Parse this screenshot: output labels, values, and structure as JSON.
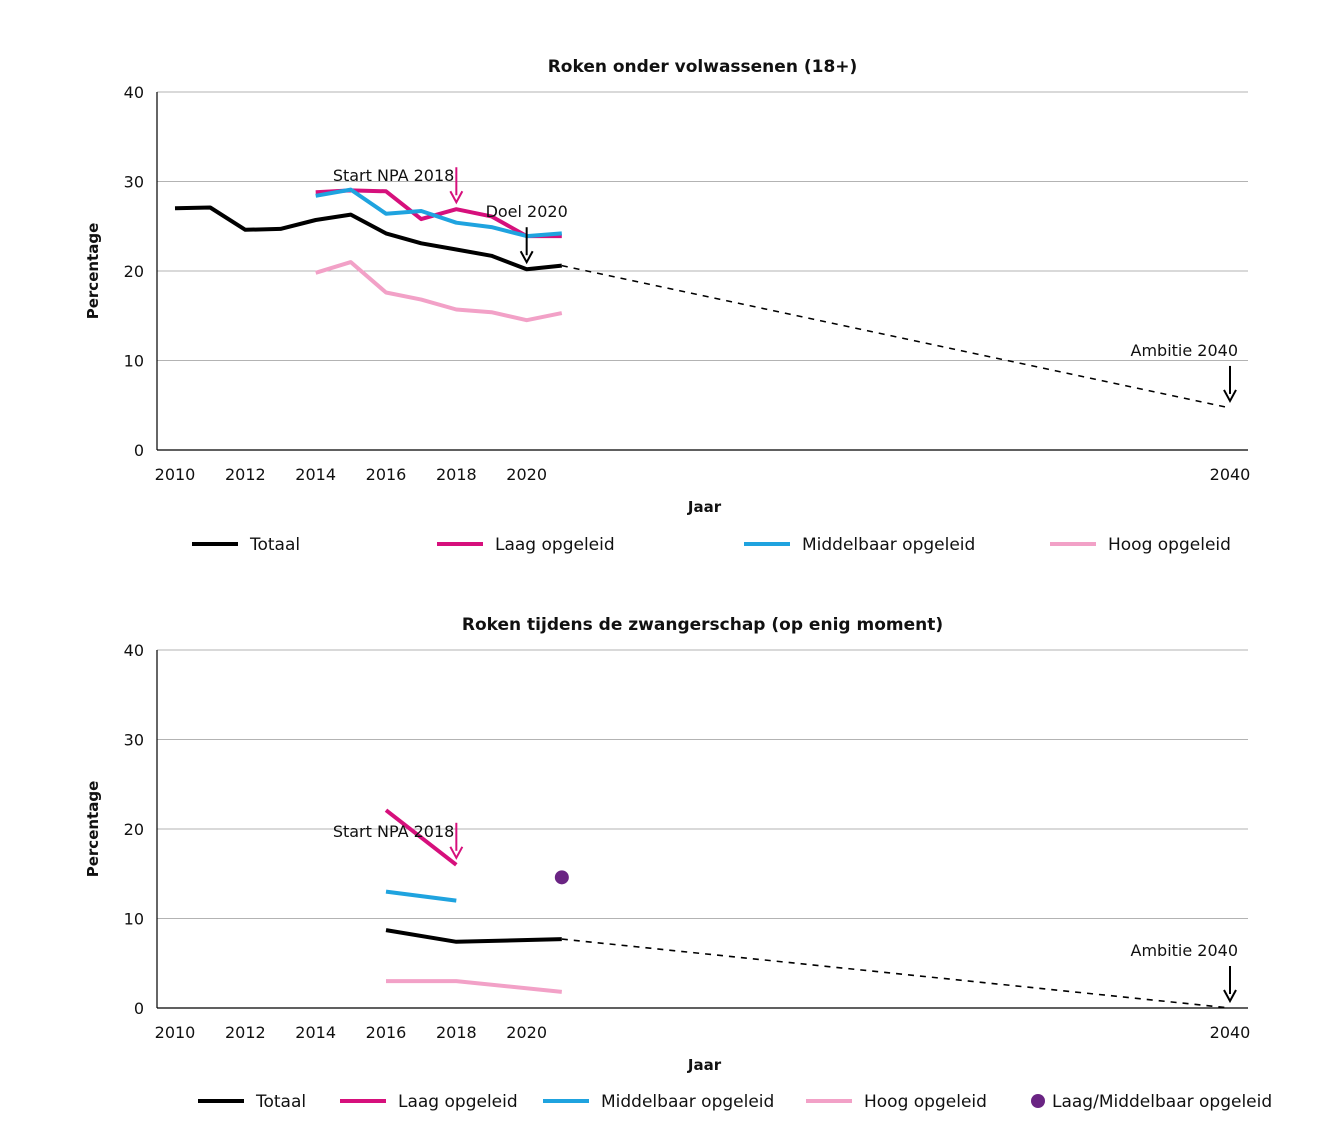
{
  "chart_data": [
    {
      "type": "line",
      "title": "Roken onder volwassenen (18+)",
      "xlabel": "Jaar",
      "ylabel": "Percentage",
      "xlim": [
        2010,
        2040
      ],
      "ylim": [
        0,
        40
      ],
      "xticks": [
        "2010",
        "2012",
        "2014",
        "2016",
        "2018",
        "2020",
        "2040"
      ],
      "yticks": [
        "0",
        "10",
        "20",
        "30",
        "40"
      ],
      "grid": "horizontal",
      "legend_position": "bottom",
      "series": [
        {
          "name": "Totaal",
          "color": "#000000",
          "x": [
            2010,
            2011,
            2012,
            2013,
            2014,
            2015,
            2016,
            2017,
            2018,
            2019,
            2020,
            2021
          ],
          "y": [
            27.0,
            27.1,
            24.6,
            24.7,
            25.7,
            26.3,
            24.2,
            23.1,
            22.4,
            21.7,
            20.2,
            20.6
          ]
        },
        {
          "name": "Laag opgeleid",
          "color": "#d6107c",
          "x": [
            2014,
            2015,
            2016,
            2017,
            2018,
            2019,
            2020,
            2021
          ],
          "y": [
            28.8,
            29.0,
            28.9,
            25.8,
            26.9,
            26.1,
            23.9,
            23.9
          ]
        },
        {
          "name": "Middelbaar opgeleid",
          "color": "#1fa3df",
          "x": [
            2014,
            2015,
            2016,
            2017,
            2018,
            2019,
            2020,
            2021
          ],
          "y": [
            28.4,
            29.1,
            26.4,
            26.7,
            25.4,
            24.9,
            23.9,
            24.2
          ]
        },
        {
          "name": "Hoog opgeleid",
          "color": "#f2a1c7",
          "x": [
            2014,
            2015,
            2016,
            2017,
            2018,
            2019,
            2020,
            2021
          ],
          "y": [
            19.8,
            21.0,
            17.6,
            16.8,
            15.7,
            15.4,
            14.5,
            15.3
          ]
        }
      ],
      "dashed": {
        "color": "#000000",
        "x": [
          2021,
          2040
        ],
        "y": [
          20.6,
          4.7
        ]
      },
      "annotations": [
        {
          "text": "Start NPA 2018",
          "x": 2018,
          "y": 26.9,
          "color": "#d6107c"
        },
        {
          "text": "Doel 2020",
          "x": 2020,
          "y": 20.2,
          "color": "#000000"
        },
        {
          "text": "Ambitie 2040",
          "x": 2040,
          "y": 4.7,
          "color": "#000000"
        }
      ]
    },
    {
      "type": "line",
      "title": "Roken tijdens de zwangerschap (op enig moment)",
      "xlabel": "Jaar",
      "ylabel": "Percentage",
      "xlim": [
        2010,
        2040
      ],
      "ylim": [
        0,
        40
      ],
      "xticks": [
        "2010",
        "2012",
        "2014",
        "2016",
        "2018",
        "2020",
        "2040"
      ],
      "yticks": [
        "0",
        "10",
        "20",
        "30",
        "40"
      ],
      "grid": "horizontal",
      "legend_position": "bottom",
      "series": [
        {
          "name": "Totaal",
          "color": "#000000",
          "x": [
            2016,
            2018,
            2021
          ],
          "y": [
            8.7,
            7.4,
            7.7
          ]
        },
        {
          "name": "Laag opgeleid",
          "color": "#d6107c",
          "x": [
            2016,
            2018
          ],
          "y": [
            22.1,
            16.0
          ]
        },
        {
          "name": "Middelbaar opgeleid",
          "color": "#1fa3df",
          "x": [
            2016,
            2018
          ],
          "y": [
            13.0,
            12.0
          ]
        },
        {
          "name": "Hoog opgeleid",
          "color": "#f2a1c7",
          "x": [
            2016,
            2018,
            2021
          ],
          "y": [
            3.0,
            3.0,
            1.8
          ]
        },
        {
          "name": "Laag/Middelbaar opgeleid",
          "color": "#6a2483",
          "marker": "point",
          "x": [
            2021
          ],
          "y": [
            14.6
          ]
        }
      ],
      "dashed": {
        "color": "#000000",
        "x": [
          2021,
          2040
        ],
        "y": [
          7.7,
          0
        ]
      },
      "annotations": [
        {
          "text": "Start NPA 2018",
          "x": 2018,
          "y": 16.0,
          "color": "#d6107c"
        },
        {
          "text": "Ambitie 2040",
          "x": 2040,
          "y": 0,
          "color": "#000000"
        }
      ]
    }
  ]
}
